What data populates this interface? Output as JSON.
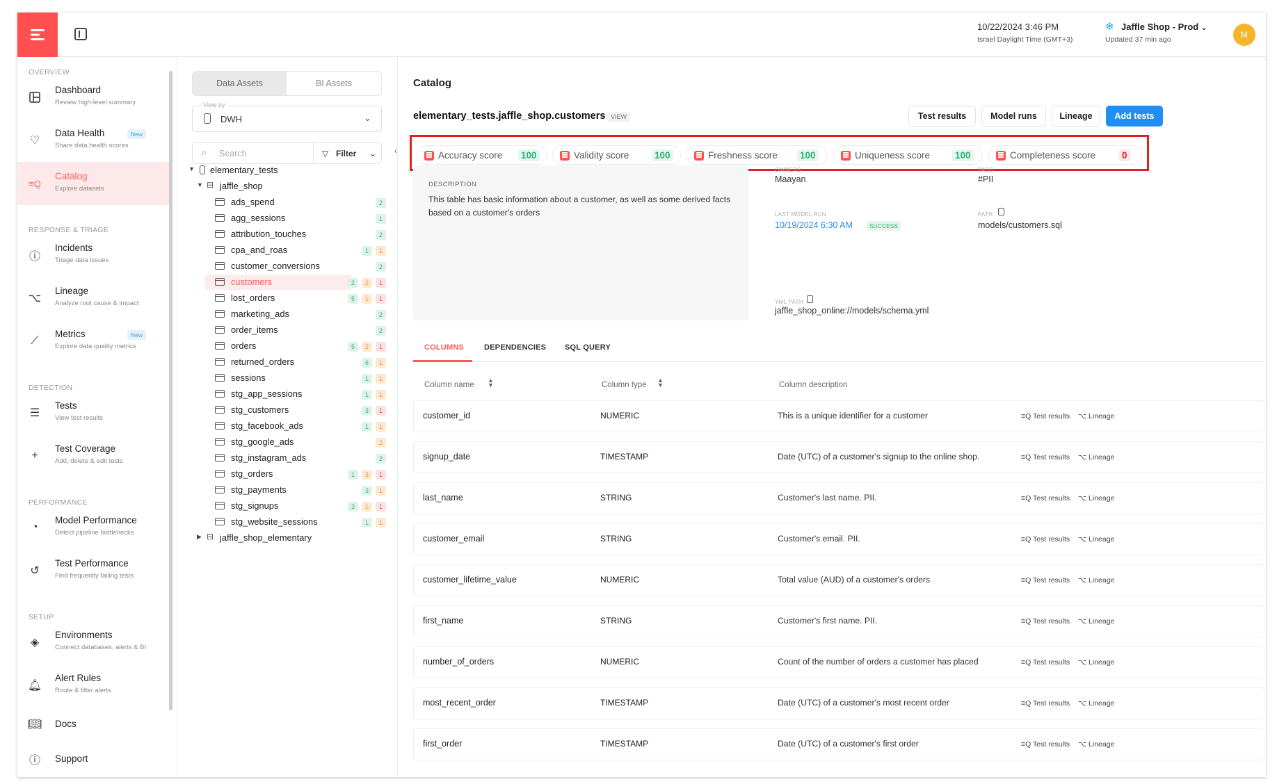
{
  "topbar": {
    "datetime": "10/22/2024 3:46 PM",
    "timezone": "Israel Daylight Time (GMT+3)",
    "environment": "Jaffle Shop - Prod",
    "updated": "Updated 37 min ago",
    "avatar_initial": "M",
    "avatar_color": "#f5b42a",
    "brand_color": "#ff4f4f"
  },
  "sidebar": {
    "sections": {
      "overview": "OVERVIEW",
      "response": "RESPONSE & TRIAGE",
      "detection": "DETECTION",
      "performance": "PERFORMANCE",
      "setup": "SETUP"
    },
    "new_badge": "New",
    "items": [
      {
        "title": "Dashboard",
        "sub": "Review high-level summary",
        "icon": "dashboard-icon"
      },
      {
        "title": "Data Health",
        "sub": "Share data health scores",
        "icon": "heart-pulse-icon"
      },
      {
        "title": "Catalog",
        "sub": "Explore datasets",
        "icon": "catalog-icon"
      },
      {
        "title": "Incidents",
        "sub": "Triage data issues",
        "icon": "alert-circle-icon"
      },
      {
        "title": "Lineage",
        "sub": "Analyze root cause & impact",
        "icon": "lineage-icon"
      },
      {
        "title": "Metrics",
        "sub": "Explore data quality metrics",
        "icon": "metrics-icon"
      },
      {
        "title": "Tests",
        "sub": "View test results",
        "icon": "list-icon"
      },
      {
        "title": "Test Coverage",
        "sub": "Add, delete & edit tests",
        "icon": "plus-icon"
      },
      {
        "title": "Model Performance",
        "sub": "Detect pipeline bottlenecks",
        "icon": "gauge-icon"
      },
      {
        "title": "Test Performance",
        "sub": "Find frequently failing tests",
        "icon": "history-icon"
      },
      {
        "title": "Environments",
        "sub": "Connect databases, alerts & BI",
        "icon": "layers-icon"
      },
      {
        "title": "Alert Rules",
        "sub": "Route & filter alerts",
        "icon": "bell-icon"
      },
      {
        "title": "Docs",
        "sub": "",
        "icon": "book-icon"
      },
      {
        "title": "Support",
        "sub": "",
        "icon": "help-icon"
      }
    ]
  },
  "tree": {
    "tabs": [
      "Data Assets",
      "BI Assets"
    ],
    "view_by_label": "View by",
    "view_by_value": "DWH",
    "search_placeholder": "Search",
    "filter_label": "Filter",
    "schema": "elementary_tests",
    "dataset": "jaffle_shop",
    "dataset2": "jaffle_shop_elementary",
    "tables": [
      {
        "name": "ads_spend",
        "b": [
          [
            "",
            ""
          ],
          [
            "",
            ""
          ],
          [
            "g",
            "2"
          ]
        ]
      },
      {
        "name": "agg_sessions",
        "b": [
          [
            "",
            ""
          ],
          [
            "",
            ""
          ],
          [
            "g",
            "1"
          ]
        ]
      },
      {
        "name": "attribution_touches",
        "b": [
          [
            "",
            ""
          ],
          [
            "",
            ""
          ],
          [
            "g",
            "2"
          ]
        ]
      },
      {
        "name": "cpa_and_roas",
        "b": [
          [
            "",
            ""
          ],
          [
            "g",
            "1"
          ],
          [
            "o",
            "1"
          ]
        ]
      },
      {
        "name": "customer_conversions",
        "b": [
          [
            "",
            ""
          ],
          [
            "",
            ""
          ],
          [
            "g",
            "2"
          ]
        ]
      },
      {
        "name": "customers",
        "b": [
          [
            "g",
            "2"
          ],
          [
            "o",
            "2"
          ],
          [
            "r",
            "1"
          ]
        ]
      },
      {
        "name": "lost_orders",
        "b": [
          [
            "g",
            "5"
          ],
          [
            "o",
            "1"
          ],
          [
            "r",
            "1"
          ]
        ]
      },
      {
        "name": "marketing_ads",
        "b": [
          [
            "",
            ""
          ],
          [
            "",
            ""
          ],
          [
            "g",
            "2"
          ]
        ]
      },
      {
        "name": "order_items",
        "b": [
          [
            "",
            ""
          ],
          [
            "",
            ""
          ],
          [
            "g",
            "2"
          ]
        ]
      },
      {
        "name": "orders",
        "b": [
          [
            "g",
            "5"
          ],
          [
            "o",
            "2"
          ],
          [
            "r",
            "1"
          ]
        ]
      },
      {
        "name": "returned_orders",
        "b": [
          [
            "",
            ""
          ],
          [
            "g",
            "6"
          ],
          [
            "o",
            "1"
          ]
        ]
      },
      {
        "name": "sessions",
        "b": [
          [
            "",
            ""
          ],
          [
            "g",
            "1"
          ],
          [
            "o",
            "1"
          ]
        ]
      },
      {
        "name": "stg_app_sessions",
        "b": [
          [
            "",
            ""
          ],
          [
            "g",
            "1"
          ],
          [
            "o",
            "1"
          ]
        ]
      },
      {
        "name": "stg_customers",
        "b": [
          [
            "",
            ""
          ],
          [
            "g",
            "3"
          ],
          [
            "r",
            "1"
          ]
        ]
      },
      {
        "name": "stg_facebook_ads",
        "b": [
          [
            "",
            ""
          ],
          [
            "g",
            "1"
          ],
          [
            "o",
            "1"
          ]
        ]
      },
      {
        "name": "stg_google_ads",
        "b": [
          [
            "",
            ""
          ],
          [
            "",
            ""
          ],
          [
            "o",
            "2"
          ]
        ]
      },
      {
        "name": "stg_instagram_ads",
        "b": [
          [
            "",
            ""
          ],
          [
            "",
            ""
          ],
          [
            "g",
            "2"
          ]
        ]
      },
      {
        "name": "stg_orders",
        "b": [
          [
            "g",
            "1"
          ],
          [
            "o",
            "3"
          ],
          [
            "r",
            "1"
          ]
        ]
      },
      {
        "name": "stg_payments",
        "b": [
          [
            "",
            ""
          ],
          [
            "g",
            "3"
          ],
          [
            "o",
            "1"
          ]
        ]
      },
      {
        "name": "stg_signups",
        "b": [
          [
            "g",
            "3"
          ],
          [
            "o",
            "1"
          ],
          [
            "r",
            "1"
          ]
        ]
      },
      {
        "name": "stg_website_sessions",
        "b": [
          [
            "",
            ""
          ],
          [
            "g",
            "1"
          ],
          [
            "o",
            "1"
          ]
        ]
      }
    ]
  },
  "main": {
    "title": "Catalog",
    "table_name": "elementary_tests.jaffle_shop.customers",
    "table_kind": "VIEW",
    "buttons": {
      "test_results": "Test results",
      "model_runs": "Model runs",
      "lineage": "Lineage",
      "add_tests": "Add tests"
    },
    "scores": [
      {
        "label": "Accuracy score",
        "value": "100"
      },
      {
        "label": "Validity score",
        "value": "100"
      },
      {
        "label": "Freshness score",
        "value": "100"
      },
      {
        "label": "Uniqueness score",
        "value": "100"
      },
      {
        "label": "Completeness score",
        "value": "0"
      }
    ],
    "description_label": "DESCRIPTION",
    "description": "This table has basic information about a customer, as well as some derived facts based on a customer's orders",
    "owners_label": "OWNERS",
    "owners": "Maayan",
    "tags_label": "TAGS",
    "tags": "#PII",
    "last_run_label": "LAST MODEL RUN",
    "last_run": "10/19/2024 6:30 AM",
    "last_run_status": "SUCCESS",
    "path_label": "PATH",
    "path": "models/customers.sql",
    "yml_label": "YML PATH",
    "yml": "jaffle_shop_online://models/schema.yml",
    "tabs": [
      "COLUMNS",
      "DEPENDENCIES",
      "SQL QUERY"
    ],
    "columns_header": {
      "name": "Column name",
      "type": "Column type",
      "desc": "Column description"
    },
    "row_action_tests": "Test results",
    "row_action_lineage": "Lineage",
    "columns": [
      {
        "name": "customer_id",
        "type": "NUMERIC",
        "desc": "This is a unique identifier for a customer"
      },
      {
        "name": "signup_date",
        "type": "TIMESTAMP",
        "desc": "Date (UTC) of a customer's signup to the online shop."
      },
      {
        "name": "last_name",
        "type": "STRING",
        "desc": "Customer's last name. PII."
      },
      {
        "name": "customer_email",
        "type": "STRING",
        "desc": "Customer's email. PII."
      },
      {
        "name": "customer_lifetime_value",
        "type": "NUMERIC",
        "desc": "Total value (AUD) of a customer's orders"
      },
      {
        "name": "first_name",
        "type": "STRING",
        "desc": "Customer's first name. PII."
      },
      {
        "name": "number_of_orders",
        "type": "NUMERIC",
        "desc": "Count of the number of orders a customer has placed"
      },
      {
        "name": "most_recent_order",
        "type": "TIMESTAMP",
        "desc": "Date (UTC) of a customer's most recent order"
      },
      {
        "name": "first_order",
        "type": "TIMESTAMP",
        "desc": "Date (UTC) of a customer's first order"
      }
    ]
  }
}
